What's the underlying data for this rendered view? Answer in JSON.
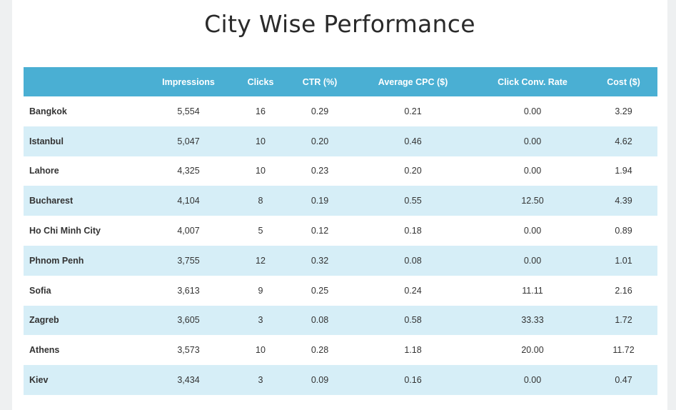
{
  "title": "City Wise Performance",
  "headers": [
    "",
    "Impressions",
    "Clicks",
    "CTR (%)",
    "Average CPC ($)",
    "Click Conv. Rate",
    "Cost ($)"
  ],
  "rows": [
    [
      "Bangkok",
      "5,554",
      "16",
      "0.29",
      "0.21",
      "0.00",
      "3.29"
    ],
    [
      "Istanbul",
      "5,047",
      "10",
      "0.20",
      "0.46",
      "0.00",
      "4.62"
    ],
    [
      "Lahore",
      "4,325",
      "10",
      "0.23",
      "0.20",
      "0.00",
      "1.94"
    ],
    [
      "Bucharest",
      "4,104",
      "8",
      "0.19",
      "0.55",
      "12.50",
      "4.39"
    ],
    [
      "Ho Chi Minh City",
      "4,007",
      "5",
      "0.12",
      "0.18",
      "0.00",
      "0.89"
    ],
    [
      "Phnom Penh",
      "3,755",
      "12",
      "0.32",
      "0.08",
      "0.00",
      "1.01"
    ],
    [
      "Sofia",
      "3,613",
      "9",
      "0.25",
      "0.24",
      "11.11",
      "2.16"
    ],
    [
      "Zagreb",
      "3,605",
      "3",
      "0.08",
      "0.58",
      "33.33",
      "1.72"
    ],
    [
      "Athens",
      "3,573",
      "10",
      "0.28",
      "1.18",
      "20.00",
      "11.72"
    ],
    [
      "Kiev",
      "3,434",
      "3",
      "0.09",
      "0.16",
      "0.00",
      "0.47"
    ]
  ],
  "colors": {
    "header_bg": "#4aafd3",
    "stripe_bg": "#d6eef7",
    "page_bg": "#eef0f1"
  }
}
